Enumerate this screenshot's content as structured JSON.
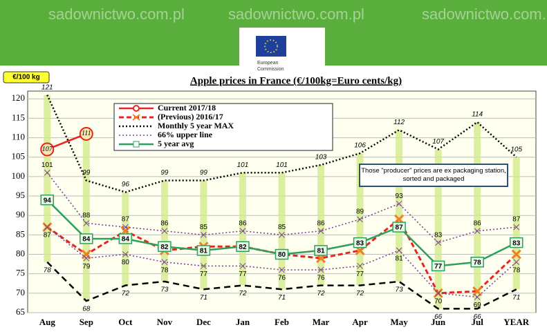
{
  "header": {
    "watermark": "sadownictwo.com.pl",
    "logo_lines": [
      "European",
      "Commission"
    ]
  },
  "chart_data": {
    "type": "line",
    "title": "Apple prices in France (€/100kg=Euro cents/kg)",
    "unit_badge": "€/100 kg",
    "note": "Those \"producer\" prices are ex packaging station, sorted and packaged",
    "categories": [
      "Aug",
      "Sep",
      "Oct",
      "Nov",
      "Dec",
      "Jan",
      "Feb",
      "Mar",
      "Apr",
      "May",
      "Jun",
      "Jul",
      "YEAR"
    ],
    "ylim": [
      65,
      122
    ],
    "yticks": [
      65,
      70,
      75,
      80,
      85,
      90,
      95,
      100,
      105,
      110,
      115,
      120
    ],
    "grid": true,
    "range_bars": {
      "color": "#d3ea8c"
    },
    "series": [
      {
        "name": "Current 2017/18",
        "color": "#e8241c",
        "style": "solid-circle",
        "values": [
          107,
          111,
          null,
          null,
          null,
          null,
          null,
          null,
          null,
          null,
          null,
          null,
          null
        ]
      },
      {
        "name": "(Previous) 2016/17",
        "color": "#e8241c",
        "style": "dashed-x",
        "values": [
          87,
          80,
          86,
          81,
          82,
          82,
          80,
          79,
          81,
          89,
          70,
          70.5,
          80
        ]
      },
      {
        "name": "Monthly 5 year MAX",
        "color": "#000000",
        "style": "dotted",
        "values": [
          121,
          99,
          96,
          99,
          99,
          101,
          101,
          103,
          106,
          112,
          107,
          114,
          105
        ]
      },
      {
        "name": "66% upper line",
        "color": "#7b3f9e",
        "style": "dotted-x",
        "values": [
          101,
          88,
          87,
          86,
          85,
          86,
          85,
          86,
          89,
          93,
          83,
          86,
          87
        ]
      },
      {
        "name": "5 year avg",
        "color": "#2ca05a",
        "style": "solid-square",
        "values": [
          94,
          84,
          84,
          82,
          81,
          82,
          80,
          81,
          83,
          87,
          77,
          78,
          83
        ]
      },
      {
        "color": "#7b3f9e",
        "style": "dotted-x",
        "values": [
          87,
          79,
          80,
          78,
          77,
          77,
          76,
          76,
          77,
          81,
          70,
          69,
          78
        ]
      },
      {
        "color": "#000000",
        "style": "dashed",
        "values": [
          78,
          68,
          72,
          73,
          71,
          72,
          71,
          72,
          72,
          73,
          66,
          66,
          71
        ]
      }
    ]
  }
}
